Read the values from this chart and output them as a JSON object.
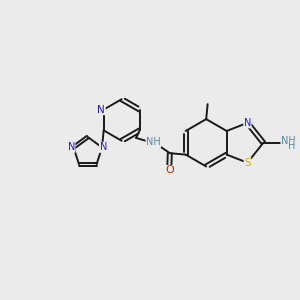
{
  "background_color": "#ebebeb",
  "bond_color": "#1a1a1a",
  "figsize": [
    3.0,
    3.0
  ],
  "dpi": 100,
  "colors": {
    "N": "#1a1acc",
    "S": "#ccaa00",
    "O": "#cc2200",
    "NH": "#5588aa",
    "C": "#1a1a1a"
  }
}
